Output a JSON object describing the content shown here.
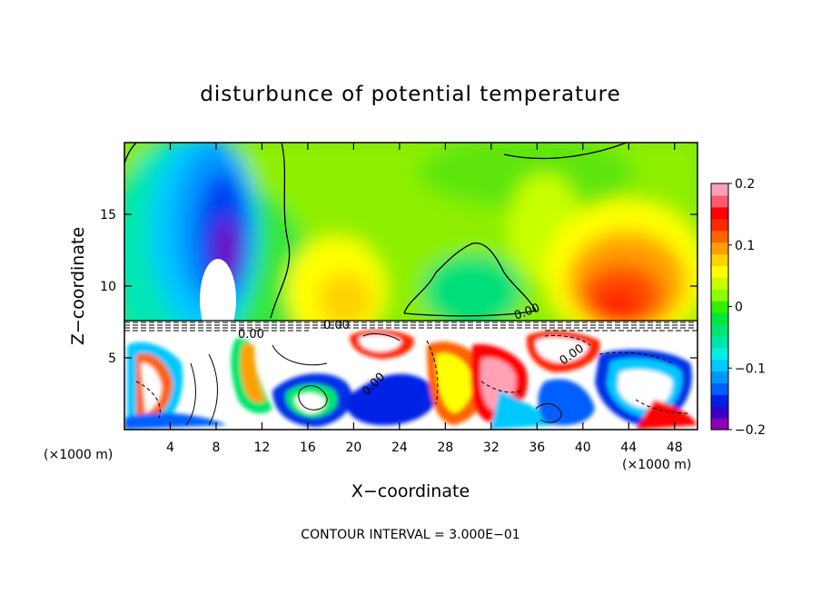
{
  "chart_data": {
    "type": "heatmap",
    "title": "disturbunce of potential temperature",
    "xlabel": "X−coordinate",
    "ylabel": "Z−coordinate",
    "x_unit_left": "(×1000 m)",
    "x_unit_right": "(×1000 m)",
    "xlim": [
      0,
      50
    ],
    "ylim": [
      0,
      20
    ],
    "x_ticks": [
      4,
      8,
      12,
      16,
      20,
      24,
      28,
      32,
      36,
      40,
      44,
      48
    ],
    "y_ticks": [
      5,
      10,
      15
    ],
    "colorbar": {
      "range": [
        -0.2,
        0.2
      ],
      "ticks": [
        {
          "value": 0.2,
          "label": "0.2"
        },
        {
          "value": 0.1,
          "label": "0.1"
        },
        {
          "value": 0,
          "label": "0"
        },
        {
          "value": -0.1,
          "label": "−0.1"
        },
        {
          "value": -0.2,
          "label": "−0.2"
        }
      ],
      "colors": [
        "#8c00b4",
        "#3700c8",
        "#0020e6",
        "#0060ff",
        "#0096ff",
        "#00c8ff",
        "#00f0e6",
        "#00e6aa",
        "#00e66e",
        "#00e63c",
        "#32f000",
        "#8cff00",
        "#c8ff00",
        "#ffff00",
        "#ffd200",
        "#ffa000",
        "#ff6400",
        "#ff2800",
        "#ff0000",
        "#ff5a6e",
        "#ffa0b4"
      ]
    },
    "contour_labels": [
      "0.00",
      "0.00",
      "0.00",
      "0.00",
      "0.00"
    ],
    "contour_interval_label": "CONTOUR INTERVAL = 3.000E−01",
    "features": [
      {
        "kind": "warm",
        "x": 43,
        "z": 10.5,
        "value": 0.15
      },
      {
        "kind": "warm",
        "x": 36,
        "z": 12,
        "value": 0.06
      },
      {
        "kind": "warm",
        "x": 18,
        "z": 11,
        "value": 0.05
      },
      {
        "kind": "cold",
        "x": 8.5,
        "z": 15,
        "value": -0.17
      },
      {
        "kind": "cold",
        "x": 5,
        "z": 12,
        "value": -0.08
      },
      {
        "kind": "neutral",
        "x": 28,
        "z": 16,
        "value": 0.02
      }
    ]
  }
}
